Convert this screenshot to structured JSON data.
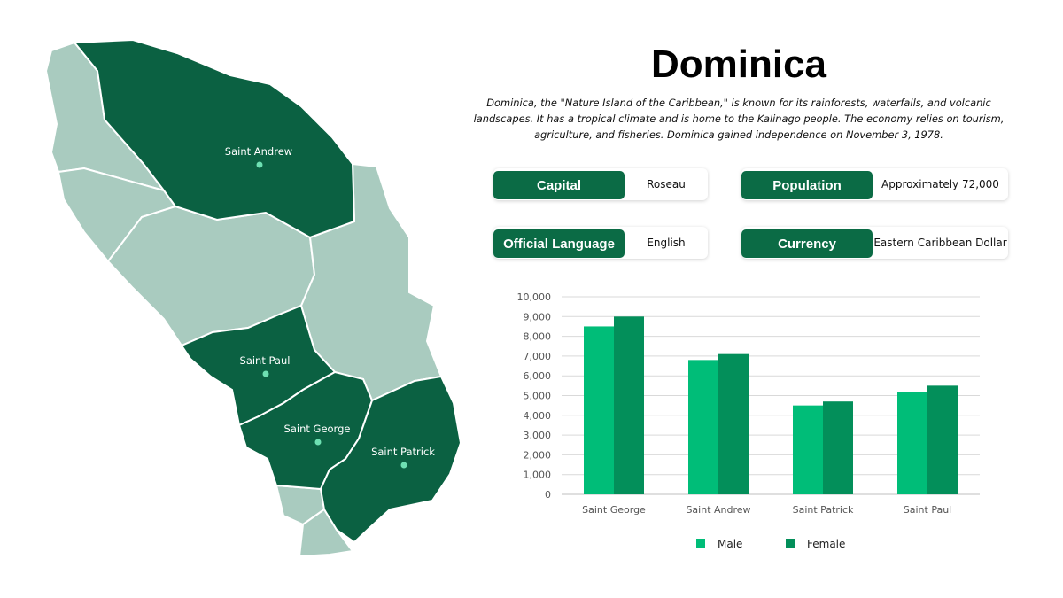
{
  "page": {
    "title": "Dominica",
    "description": "Dominica, the \"Nature Island of the Caribbean,\" is known for its rainforests, waterfalls, and volcanic landscapes. It has a tropical climate and is home to the Kalinago people. The economy relies on tourism, agriculture, and fisheries. Dominica gained independence on November 3, 1978."
  },
  "facts": {
    "capital": {
      "label": "Capital",
      "value": "Roseau"
    },
    "population": {
      "label": "Population",
      "value": "Approximately 72,000"
    },
    "language": {
      "label": "Official Language",
      "value": "English"
    },
    "currency": {
      "label": "Currency",
      "value": "Eastern Caribbean Dollar"
    }
  },
  "map": {
    "highlighted_labels": [
      "Saint Andrew",
      "Saint Paul",
      "Saint George",
      "Saint Patrick"
    ],
    "colors": {
      "highlight": "#0b6142",
      "base": "#a9cbbf",
      "marker": "#6ee0b2"
    }
  },
  "chart_data": {
    "type": "bar",
    "categories": [
      "Saint George",
      "Saint Andrew",
      "Saint Patrick",
      "Saint Paul"
    ],
    "series": [
      {
        "name": "Male",
        "values": [
          8500,
          6800,
          4500,
          5200
        ],
        "color": "#00bd78"
      },
      {
        "name": "Female",
        "values": [
          9000,
          7100,
          4700,
          5500
        ],
        "color": "#038f5a"
      }
    ],
    "ylim": [
      0,
      10000
    ],
    "yticks": [
      "0",
      "1,000",
      "2,000",
      "3,000",
      "4,000",
      "5,000",
      "6,000",
      "7,000",
      "8,000",
      "9,000",
      "10,000"
    ],
    "grid": true,
    "legend": "bottom"
  }
}
